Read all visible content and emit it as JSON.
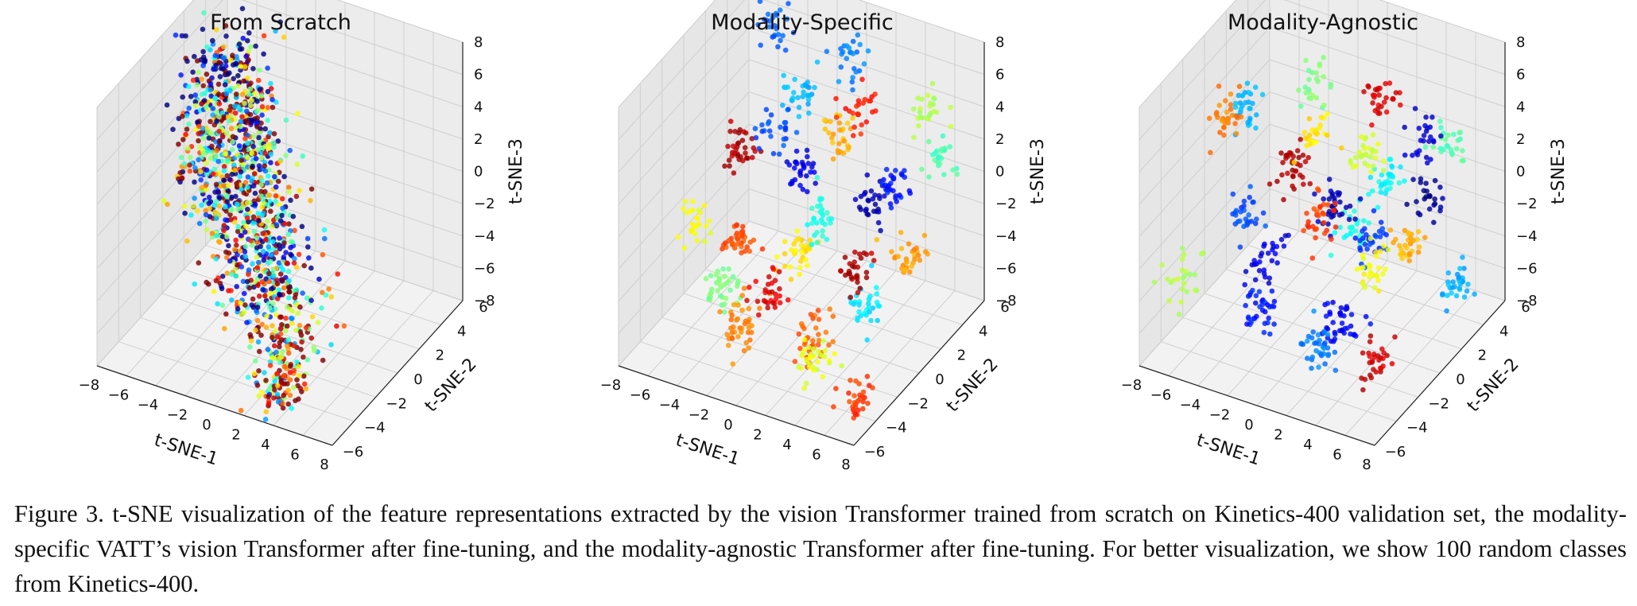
{
  "figure": {
    "caption": "Figure 3. t-SNE visualization of the feature representations extracted by the vision Transformer trained from scratch on Kinetics-400 validation set, the modality-specific VATT’s vision Transformer after fine-tuning, and the modality-agnostic Transformer after fine-tuning. For better visualization, we show 100 random classes from Kinetics-400."
  },
  "chart_data": [
    {
      "type": "scatter",
      "title": "From Scratch",
      "xlabel": "t-SNE-1",
      "ylabel": "t-SNE-2",
      "zlabel": "t-SNE-3",
      "xlim": [
        -8,
        8
      ],
      "ylim": [
        -6,
        6
      ],
      "zlim": [
        -8,
        8
      ],
      "x_ticks": [
        "−8",
        "−6",
        "−4",
        "−2",
        "0",
        "2",
        "4",
        "6",
        "8"
      ],
      "y_ticks": [
        "−6",
        "−4",
        "−2",
        "0",
        "2",
        "4",
        "6"
      ],
      "z_ticks": [
        "−8",
        "−6",
        "−4",
        "−2",
        "0",
        "2",
        "4",
        "6",
        "8"
      ],
      "grid": true,
      "colormap": "jet",
      "n_classes": 100,
      "clusters": [
        {
          "x": -5.5,
          "y": 2.0,
          "z": 4.5,
          "n": 130,
          "spread": 1.3,
          "c": 0.05
        },
        {
          "x": -4.5,
          "y": 1.5,
          "z": 3.5,
          "n": 130,
          "spread": 1.3,
          "c": 0.95
        },
        {
          "x": -4.0,
          "y": 1.0,
          "z": 2.5,
          "n": 130,
          "spread": 1.4,
          "c": 0.35
        },
        {
          "x": -3.5,
          "y": 0.5,
          "z": 1.5,
          "n": 130,
          "spread": 1.4,
          "c": 0.7
        },
        {
          "x": -3.0,
          "y": 0.0,
          "z": 0.5,
          "n": 130,
          "spread": 1.4,
          "c": 0.2
        },
        {
          "x": -2.0,
          "y": -0.5,
          "z": -0.5,
          "n": 120,
          "spread": 1.4,
          "c": 0.85
        },
        {
          "x": -1.0,
          "y": -1.0,
          "z": -1.5,
          "n": 110,
          "spread": 1.3,
          "c": 0.55
        },
        {
          "x": 0.0,
          "y": -1.5,
          "z": -2.5,
          "n": 100,
          "spread": 1.3,
          "c": 0.1
        },
        {
          "x": 1.0,
          "y": -2.0,
          "z": -3.5,
          "n": 90,
          "spread": 1.2,
          "c": 0.45
        },
        {
          "x": 2.0,
          "y": -2.5,
          "z": -4.5,
          "n": 70,
          "spread": 1.2,
          "c": 0.9
        },
        {
          "x": 3.0,
          "y": -3.0,
          "z": -5.5,
          "n": 50,
          "spread": 1.0,
          "c": 0.75
        },
        {
          "x": 2.5,
          "y": -4.0,
          "z": -6.5,
          "n": 45,
          "spread": 0.8,
          "c": 0.6
        },
        {
          "x": 3.5,
          "y": -4.5,
          "z": -7.0,
          "n": 45,
          "spread": 0.6,
          "c": 0.8
        }
      ]
    },
    {
      "type": "scatter",
      "title": "Modality-Specific",
      "xlabel": "t-SNE-1",
      "ylabel": "t-SNE-2",
      "zlabel": "t-SNE-3",
      "xlim": [
        -8,
        8
      ],
      "ylim": [
        -6,
        6
      ],
      "zlim": [
        -8,
        8
      ],
      "x_ticks": [
        "−8",
        "−6",
        "−4",
        "−2",
        "0",
        "2",
        "4",
        "6",
        "8"
      ],
      "y_ticks": [
        "−6",
        "−4",
        "−2",
        "0",
        "2",
        "4",
        "6"
      ],
      "z_ticks": [
        "−8",
        "−6",
        "−4",
        "−2",
        "0",
        "2",
        "4",
        "6",
        "8"
      ],
      "grid": true,
      "colormap": "jet",
      "n_classes": 100,
      "clusters": [
        {
          "x": -6.5,
          "y": 3.0,
          "z": -1.0,
          "n": 35,
          "spread": 0.45,
          "c": 0.95
        },
        {
          "x": -5.0,
          "y": 1.0,
          "z": -4.5,
          "n": 35,
          "spread": 0.45,
          "c": 0.8
        },
        {
          "x": -4.0,
          "y": -2.0,
          "z": -5.0,
          "n": 35,
          "spread": 0.45,
          "c": 0.5
        },
        {
          "x": -3.0,
          "y": 4.0,
          "z": 3.0,
          "n": 30,
          "spread": 0.5,
          "c": 0.3
        },
        {
          "x": -2.0,
          "y": -3.0,
          "z": -6.0,
          "n": 40,
          "spread": 0.5,
          "c": 0.75
        },
        {
          "x": -1.5,
          "y": 2.0,
          "z": 0.0,
          "n": 30,
          "spread": 0.5,
          "c": 0.1
        },
        {
          "x": -1.0,
          "y": -1.0,
          "z": 5.0,
          "n": 25,
          "spread": 0.5,
          "c": 0.2
        },
        {
          "x": 0.0,
          "y": 0.0,
          "z": -3.0,
          "n": 35,
          "spread": 0.5,
          "c": 0.65
        },
        {
          "x": 0.5,
          "y": 4.0,
          "z": 6.0,
          "n": 25,
          "spread": 0.5,
          "c": 0.25
        },
        {
          "x": 1.0,
          "y": -4.0,
          "z": -2.0,
          "n": 30,
          "spread": 0.5,
          "c": 0.9
        },
        {
          "x": 1.5,
          "y": 1.5,
          "z": 3.5,
          "n": 30,
          "spread": 0.5,
          "c": 0.7
        },
        {
          "x": 2.0,
          "y": -1.5,
          "z": -6.5,
          "n": 35,
          "spread": 0.5,
          "c": 0.78
        },
        {
          "x": 2.5,
          "y": 3.0,
          "z": -1.5,
          "n": 30,
          "spread": 0.5,
          "c": 0.05
        },
        {
          "x": 3.0,
          "y": -2.5,
          "z": 2.0,
          "n": 30,
          "spread": 0.5,
          "c": 0.4
        },
        {
          "x": 3.5,
          "y": 0.5,
          "z": 6.5,
          "n": 25,
          "spread": 0.5,
          "c": 0.85
        },
        {
          "x": 4.0,
          "y": -4.5,
          "z": -5.0,
          "n": 35,
          "spread": 0.5,
          "c": 0.6
        },
        {
          "x": 4.5,
          "y": 2.0,
          "z": 1.0,
          "n": 30,
          "spread": 0.5,
          "c": 0.15
        },
        {
          "x": 5.0,
          "y": -1.0,
          "z": -4.0,
          "n": 30,
          "spread": 0.5,
          "c": 0.35
        },
        {
          "x": 5.5,
          "y": 4.5,
          "z": 4.0,
          "n": 25,
          "spread": 0.5,
          "c": 0.55
        },
        {
          "x": 6.0,
          "y": -3.0,
          "z": 0.0,
          "n": 30,
          "spread": 0.5,
          "c": 0.95
        },
        {
          "x": 6.5,
          "y": 1.0,
          "z": -2.0,
          "n": 30,
          "spread": 0.5,
          "c": 0.72
        },
        {
          "x": 7.0,
          "y": 3.5,
          "z": 2.5,
          "n": 25,
          "spread": 0.5,
          "c": 0.45
        },
        {
          "x": -5.5,
          "y": 5.0,
          "z": 5.5,
          "n": 25,
          "spread": 0.5,
          "c": 0.22
        },
        {
          "x": -3.5,
          "y": -5.0,
          "z": 1.5,
          "n": 25,
          "spread": 0.5,
          "c": 0.62
        },
        {
          "x": 7.5,
          "y": -5.0,
          "z": -6.0,
          "n": 30,
          "spread": 0.5,
          "c": 0.82
        }
      ]
    },
    {
      "type": "scatter",
      "title": "Modality-Agnostic",
      "xlabel": "t-SNE-1",
      "ylabel": "t-SNE-2",
      "zlabel": "t-SNE-3",
      "xlim": [
        -8,
        8
      ],
      "ylim": [
        -6,
        6
      ],
      "zlim": [
        -8,
        8
      ],
      "x_ticks": [
        "−8",
        "−6",
        "−4",
        "−2",
        "0",
        "2",
        "4",
        "6",
        "8"
      ],
      "y_ticks": [
        "−6",
        "−4",
        "−2",
        "0",
        "2",
        "4",
        "6"
      ],
      "z_ticks": [
        "−8",
        "−6",
        "−4",
        "−2",
        "0",
        "2",
        "4",
        "6",
        "8"
      ],
      "grid": true,
      "colormap": "jet",
      "n_classes": 100,
      "clusters": [
        {
          "x": -7.0,
          "y": 2.5,
          "z": 2.0,
          "n": 30,
          "spread": 0.5,
          "c": 0.3
        },
        {
          "x": -6.0,
          "y": -1.0,
          "z": 4.5,
          "n": 30,
          "spread": 0.5,
          "c": 0.75
        },
        {
          "x": -5.0,
          "y": 4.0,
          "z": -2.0,
          "n": 35,
          "spread": 0.5,
          "c": 0.95
        },
        {
          "x": -4.0,
          "y": 0.5,
          "z": -5.0,
          "n": 30,
          "spread": 0.5,
          "c": 0.1
        },
        {
          "x": -3.0,
          "y": -3.0,
          "z": 0.5,
          "n": 30,
          "spread": 0.5,
          "c": 0.2
        },
        {
          "x": -2.0,
          "y": 2.0,
          "z": 5.5,
          "n": 25,
          "spread": 0.5,
          "c": 0.5
        },
        {
          "x": -1.0,
          "y": -4.5,
          "z": -3.5,
          "n": 35,
          "spread": 0.5,
          "c": 0.15
        },
        {
          "x": 0.0,
          "y": 1.0,
          "z": -1.0,
          "n": 35,
          "spread": 0.5,
          "c": 0.05
        },
        {
          "x": 0.5,
          "y": 4.5,
          "z": 3.0,
          "n": 30,
          "spread": 0.5,
          "c": 0.9
        },
        {
          "x": 1.0,
          "y": -2.0,
          "z": 6.0,
          "n": 25,
          "spread": 0.5,
          "c": 0.65
        },
        {
          "x": 1.5,
          "y": -0.5,
          "z": -6.5,
          "n": 40,
          "spread": 0.5,
          "c": 0.12
        },
        {
          "x": 2.0,
          "y": 3.0,
          "z": 0.0,
          "n": 30,
          "spread": 0.5,
          "c": 0.38
        },
        {
          "x": 2.5,
          "y": -3.5,
          "z": 2.5,
          "n": 30,
          "spread": 0.5,
          "c": 0.82
        },
        {
          "x": 3.0,
          "y": 0.0,
          "z": 4.0,
          "n": 30,
          "spread": 0.5,
          "c": 0.58
        },
        {
          "x": 3.5,
          "y": -5.0,
          "z": -4.0,
          "n": 35,
          "spread": 0.5,
          "c": 0.25
        },
        {
          "x": 4.0,
          "y": 2.0,
          "z": -3.0,
          "n": 30,
          "spread": 0.5,
          "c": 0.7
        },
        {
          "x": 4.5,
          "y": -1.5,
          "z": 0.0,
          "n": 30,
          "spread": 0.5,
          "c": 0.18
        },
        {
          "x": 5.0,
          "y": 5.0,
          "z": 1.5,
          "n": 25,
          "spread": 0.5,
          "c": 0.45
        },
        {
          "x": 5.5,
          "y": -2.5,
          "z": -6.0,
          "n": 30,
          "spread": 0.5,
          "c": 0.92
        },
        {
          "x": 6.0,
          "y": 1.0,
          "z": 5.0,
          "n": 25,
          "spread": 0.5,
          "c": 0.08
        },
        {
          "x": 6.5,
          "y": -4.0,
          "z": 1.0,
          "n": 30,
          "spread": 0.5,
          "c": 0.62
        },
        {
          "x": 7.0,
          "y": 3.0,
          "z": -5.0,
          "n": 30,
          "spread": 0.5,
          "c": 0.3
        },
        {
          "x": 7.5,
          "y": -0.5,
          "z": 3.0,
          "n": 25,
          "spread": 0.5,
          "c": 0.02
        },
        {
          "x": -6.5,
          "y": -4.0,
          "z": -3.5,
          "n": 25,
          "spread": 0.5,
          "c": 0.55
        },
        {
          "x": -1.5,
          "y": 5.0,
          "z": -6.0,
          "n": 25,
          "spread": 0.5,
          "c": 0.4
        }
      ]
    }
  ]
}
